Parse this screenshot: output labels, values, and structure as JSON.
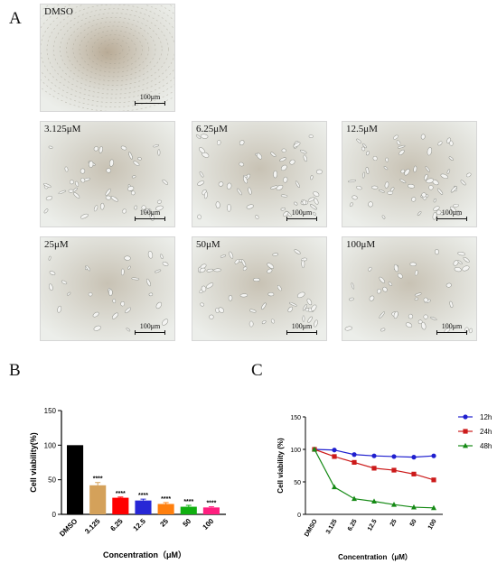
{
  "panel_letters": [
    "A",
    "B",
    "C"
  ],
  "micrographs": [
    {
      "label": "DMSO",
      "scale": "100μm"
    },
    {
      "label": "3.125μM",
      "scale": "100μm"
    },
    {
      "label": "6.25μM",
      "scale": "100μm"
    },
    {
      "label": "12.5μM",
      "scale": "100μm"
    },
    {
      "label": "25μM",
      "scale": "100μm"
    },
    {
      "label": "50μM",
      "scale": "100μm"
    },
    {
      "label": "100μM",
      "scale": "100μm"
    }
  ],
  "colors": {
    "DMSO": "#000000",
    "c3": "#d4a15a",
    "c6": "#ff0000",
    "c12": "#2727d6",
    "c25": "#ff7f0e",
    "c50": "#10b010",
    "c100": "#ff1f7f",
    "h12": "#1f1fcf",
    "h24": "#cc1a1a",
    "h48": "#158a15"
  },
  "chart_data": [
    {
      "type": "bar",
      "categories": [
        "DMSO",
        "3.125",
        "6.25",
        "12.5",
        "25",
        "50",
        "100"
      ],
      "values": [
        100,
        42,
        24,
        20,
        15,
        11,
        10
      ],
      "errors": [
        0,
        4,
        1,
        2,
        2,
        2,
        1
      ],
      "significance": [
        "",
        "****",
        "****",
        "****",
        "****",
        "****",
        "****"
      ],
      "xlabel": "Concentration（μM）",
      "ylabel": "Cell viability(%)",
      "ylim": [
        0,
        150
      ],
      "yticks": [
        "0",
        "50",
        "100",
        "150"
      ],
      "legend": "none"
    },
    {
      "type": "line",
      "categories": [
        "DMSO",
        "3.125",
        "6.25",
        "12.5",
        "25",
        "50",
        "100"
      ],
      "series": [
        {
          "name": "12h",
          "marker": "circle",
          "values": [
            100,
            99,
            92,
            90,
            89,
            88,
            90
          ]
        },
        {
          "name": "24h",
          "marker": "square",
          "values": [
            100,
            89,
            80,
            71,
            68,
            62,
            53
          ]
        },
        {
          "name": "48h",
          "marker": "triangle",
          "values": [
            100,
            42,
            24,
            20,
            15,
            11,
            10
          ]
        }
      ],
      "xlabel": "Concentration（μM）",
      "ylabel": "Cell viability (%)",
      "ylim": [
        0,
        150
      ],
      "yticks": [
        "0",
        "50",
        "100",
        "150"
      ],
      "legend": "top-right"
    }
  ]
}
